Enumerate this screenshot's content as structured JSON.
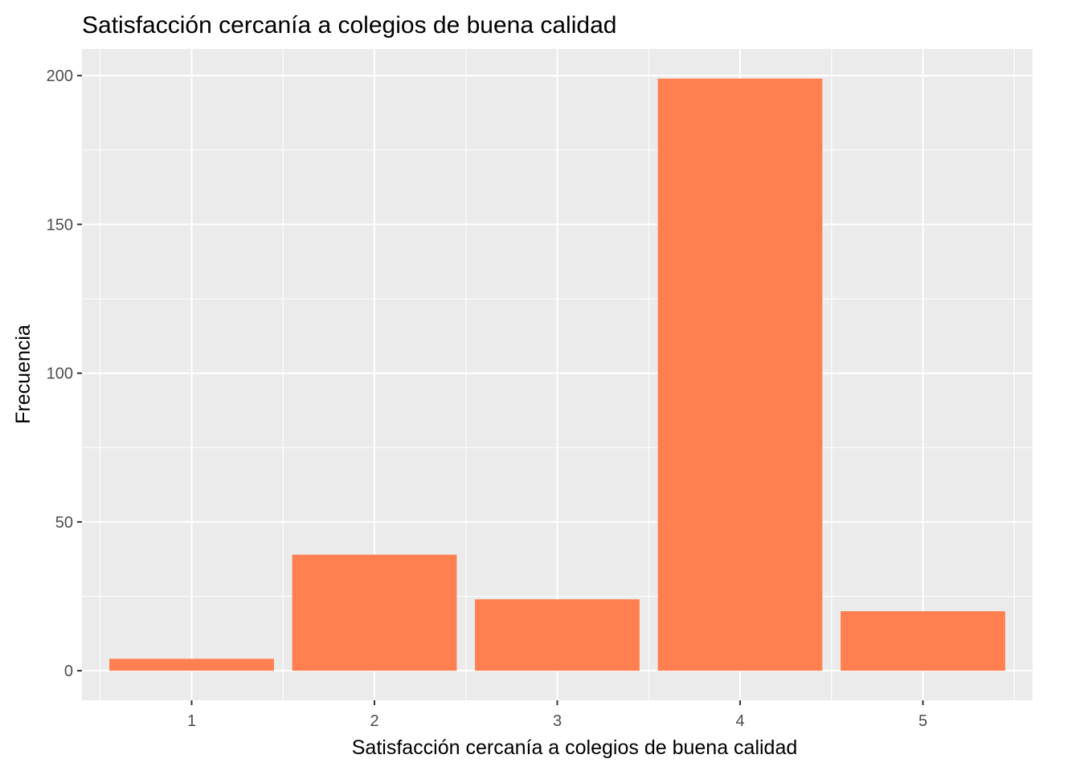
{
  "chart_data": {
    "type": "bar",
    "title": "Satisfacción cercanía a colegios de buena calidad",
    "xlabel": "Satisfacción cercanía a colegios de buena calidad",
    "ylabel": "Frecuencia",
    "categories": [
      "1",
      "2",
      "3",
      "4",
      "5"
    ],
    "values": [
      4,
      39,
      24,
      199,
      20
    ],
    "ylim": [
      -9.95,
      208.95
    ],
    "yticks": [
      0,
      50,
      100,
      150,
      200
    ],
    "ytick_labels": [
      "0",
      "50",
      "100",
      "150",
      "200"
    ],
    "grid": true,
    "bar_color": "#ff7f50",
    "panel_background": "#ebebeb",
    "grid_color": "#ffffff"
  }
}
